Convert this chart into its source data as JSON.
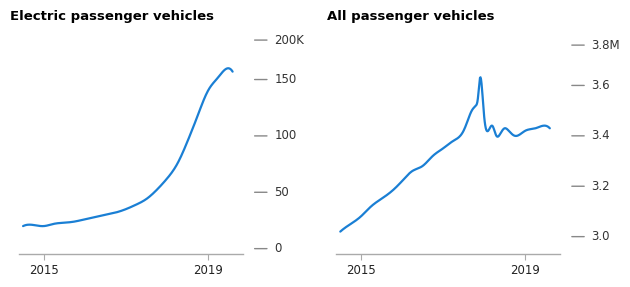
{
  "title_left": "Electric passenger vehicles",
  "title_right": "All passenger vehicles",
  "line_color": "#1a7fd4",
  "background_color": "#ffffff",
  "text_color": "#000000",
  "tick_dash_color": "#888888",
  "spine_color": "#aaaaaa",
  "axis_label_color": "#555555",
  "ev_x": [
    2014.5,
    2014.75,
    2015.0,
    2015.25,
    2015.5,
    2015.75,
    2016.0,
    2016.25,
    2016.5,
    2016.75,
    2017.0,
    2017.25,
    2017.5,
    2017.75,
    2018.0,
    2018.25,
    2018.5,
    2018.75,
    2019.0,
    2019.25,
    2019.5,
    2019.6
  ],
  "ev_y": [
    20,
    21,
    20,
    22,
    23,
    24,
    26,
    28,
    30,
    32,
    35,
    39,
    44,
    52,
    62,
    75,
    95,
    118,
    140,
    152,
    160,
    157
  ],
  "all_x": [
    2014.5,
    2014.75,
    2015.0,
    2015.25,
    2015.5,
    2015.75,
    2016.0,
    2016.25,
    2016.5,
    2016.75,
    2017.0,
    2017.25,
    2017.5,
    2017.6,
    2017.7,
    2017.8,
    2017.85,
    2017.9,
    2018.0,
    2018.1,
    2018.2,
    2018.3,
    2018.4,
    2018.5,
    2018.6,
    2018.75,
    2019.0,
    2019.25,
    2019.5,
    2019.6
  ],
  "all_y": [
    3.02,
    3.05,
    3.08,
    3.12,
    3.15,
    3.18,
    3.22,
    3.26,
    3.28,
    3.32,
    3.35,
    3.38,
    3.42,
    3.46,
    3.5,
    3.52,
    3.55,
    3.63,
    3.48,
    3.42,
    3.44,
    3.4,
    3.41,
    3.43,
    3.42,
    3.4,
    3.42,
    3.43,
    3.44,
    3.43
  ],
  "ev_yticks": [
    0,
    50,
    100,
    150
  ],
  "ev_ytick_labels": [
    "0",
    "50",
    "100",
    "150"
  ],
  "ev_ylim": [
    -5,
    185
  ],
  "ev_ylabel_top": "200K",
  "all_yticks": [
    3.0,
    3.2,
    3.4,
    3.6
  ],
  "all_ytick_labels": [
    "3.0",
    "3.2",
    "3.4",
    "3.6"
  ],
  "all_ylim": [
    2.93,
    3.78
  ],
  "all_ylabel_top": "3.8M",
  "xticks": [
    2015,
    2019
  ],
  "xtick_labels": [
    "2015",
    "2019"
  ]
}
